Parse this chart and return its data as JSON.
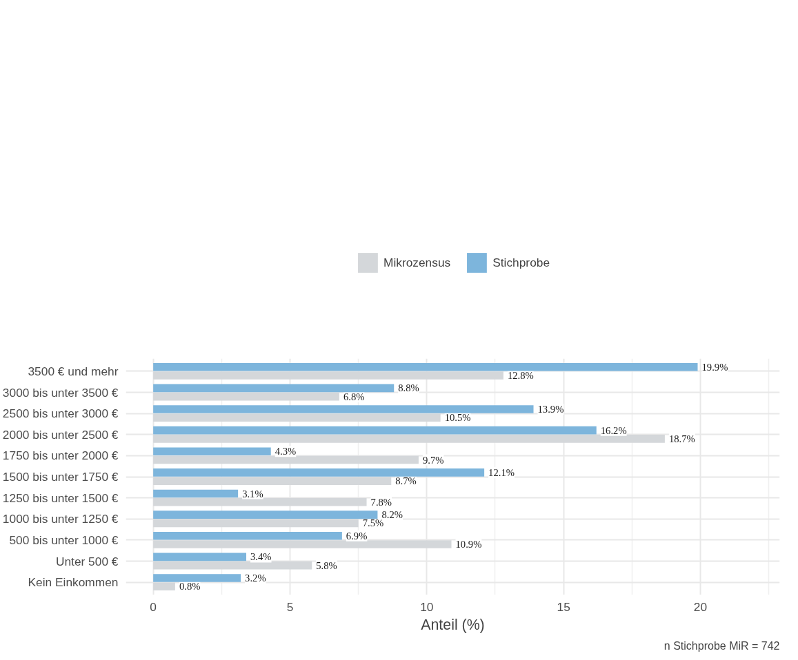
{
  "chart_data": {
    "type": "bar",
    "orientation": "horizontal",
    "xlabel": "Anteil (%)",
    "categories": [
      "3500 € und mehr",
      "3000 bis unter 3500 €",
      "2500 bis unter 3000 €",
      "2000 bis unter 2500 €",
      "1750 bis unter 2000 €",
      "1500 bis unter 1750 €",
      "1250 bis unter 1500 €",
      "1000 bis unter 1250 €",
      "500 bis unter 1000 €",
      "Unter 500 €",
      "Kein Einkommen"
    ],
    "series": [
      {
        "name": "Mikrozensus",
        "color": "#d4d7da",
        "values": [
          12.8,
          6.8,
          10.5,
          18.7,
          9.7,
          8.7,
          7.8,
          7.5,
          10.9,
          5.8,
          0.8
        ],
        "value_labels": [
          "12.8%",
          "6.8%",
          "10.5%",
          "18.7%",
          "9.7%",
          "8.7%",
          "7.8%",
          "7.5%",
          "10.9%",
          "5.8%",
          "0.8%"
        ]
      },
      {
        "name": "Stichprobe",
        "color": "#7db5dc",
        "values": [
          19.9,
          8.8,
          13.9,
          16.2,
          4.3,
          12.1,
          3.1,
          8.2,
          6.9,
          3.4,
          3.2
        ],
        "value_labels": [
          "19.9%",
          "8.8%",
          "13.9%",
          "16.2%",
          "4.3%",
          "12.1%",
          "3.1%",
          "8.2%",
          "6.9%",
          "3.4%",
          "3.2%"
        ]
      }
    ],
    "xlim": [
      -1,
      22.9
    ],
    "xticks": [
      0,
      5,
      10,
      15,
      20
    ],
    "grid": true,
    "legend": "top",
    "annotations": [
      "n Stichprobe MiR = 742"
    ]
  }
}
